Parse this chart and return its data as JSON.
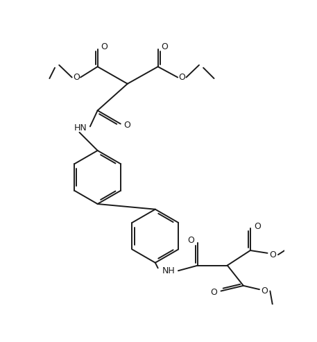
{
  "background_color": "#ffffff",
  "line_color": "#1a1a1a",
  "line_width": 1.4,
  "figsize": [
    4.57,
    4.93
  ],
  "dpi": 100,
  "xlim": [
    0,
    457
  ],
  "ylim": [
    0,
    493
  ]
}
